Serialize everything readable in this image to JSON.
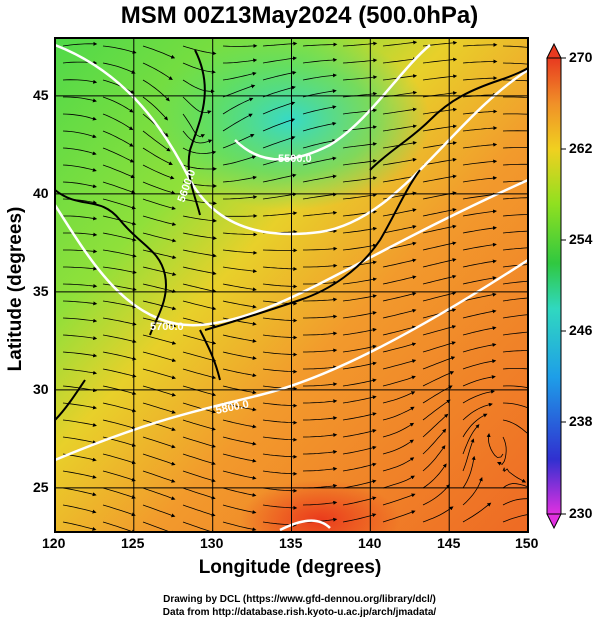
{
  "title": "MSM 00Z13May2024 (500.0hPa)",
  "xlabel": "Longitude (degrees)",
  "ylabel": "Latitude  (degrees)",
  "credits": {
    "line1": "Drawing by DCL (https://www.gfd-dennou.org/library/dcl/)",
    "line2": "Data from http://database.rish.kyoto-u.ac.jp/arch/jmadata/"
  },
  "map": {
    "lon_range": [
      120,
      150
    ],
    "lat_range": [
      22.5,
      47.7
    ],
    "lon_ticks": [
      "120",
      "125",
      "130",
      "135",
      "140",
      "145",
      "150"
    ],
    "lat_ticks": [
      "25",
      "30",
      "35",
      "40",
      "45"
    ],
    "grid": true,
    "contours": [
      {
        "label": "5700.0"
      },
      {
        "label": "5500.0"
      },
      {
        "label": "5600.0"
      },
      {
        "label": "5800.0"
      }
    ]
  },
  "colorbar": {
    "min": 230,
    "max": 270,
    "ticks": [
      "270",
      "262",
      "254",
      "246",
      "238",
      "230"
    ]
  },
  "colors": {
    "warm": "#e8501c",
    "mid": "#3fcf3a",
    "cool": "#35d8c8",
    "grid": "#000000",
    "contour": "#ffffff"
  }
}
